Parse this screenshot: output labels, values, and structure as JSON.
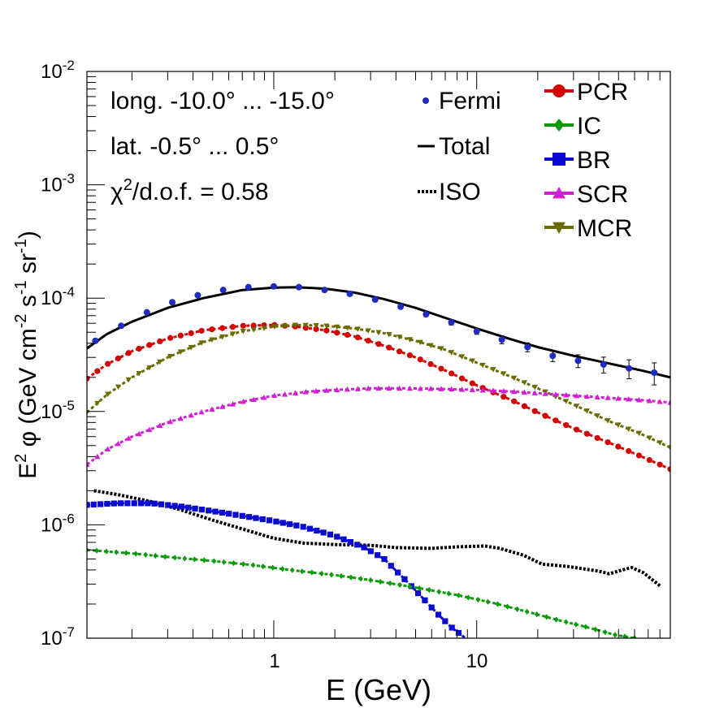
{
  "chart_data": {
    "type": "line",
    "xscale": "log",
    "yscale": "log",
    "xlim": [
      0.12,
      90
    ],
    "ylim": [
      1e-07,
      0.01
    ],
    "xlabel": "E (GeV)",
    "ylabel": {
      "base": "E",
      "sup1": "2",
      "mid": " φ (GeV cm",
      "sup2": "-2",
      "mid2": " s",
      "sup3": "-1",
      "mid3": " sr",
      "sup4": "-1",
      "end": ")"
    },
    "x_tick_labels": [
      {
        "value": 1,
        "label": "1"
      },
      {
        "value": 10,
        "label": "10"
      }
    ],
    "y_tick_labels": [
      {
        "value": 1e-07,
        "base": "10",
        "exp": "-7"
      },
      {
        "value": 1e-06,
        "base": "10",
        "exp": "-6"
      },
      {
        "value": 1e-05,
        "base": "10",
        "exp": "-5"
      },
      {
        "value": 0.0001,
        "base": "10",
        "exp": "-4"
      },
      {
        "value": 0.001,
        "base": "10",
        "exp": "-3"
      },
      {
        "value": 0.01,
        "base": "10",
        "exp": "-2"
      }
    ],
    "annotations": {
      "longitude": "long. -10.0° ... -15.0°",
      "latitude": "lat. -0.5° ... 0.5°",
      "chi2_prefix": "χ",
      "chi2_sup": "2",
      "chi2_suffix": "/d.o.f. = 0.58"
    },
    "legend_left": [
      {
        "name": "Fermi",
        "style": "dot",
        "color": "#1f2bbf"
      },
      {
        "name": "Total",
        "style": "solid",
        "color": "#000000"
      },
      {
        "name": "ISO",
        "style": "dotted",
        "color": "#000000"
      }
    ],
    "legend_right": [
      {
        "name": "PCR",
        "marker": "circle",
        "color": "#d40000"
      },
      {
        "name": "IC",
        "marker": "diamond",
        "color": "#0a9a0a"
      },
      {
        "name": "BR",
        "marker": "square",
        "color": "#0a0ad0"
      },
      {
        "name": "SCR",
        "marker": "triangle-up",
        "color": "#d020d0"
      },
      {
        "name": "MCR",
        "marker": "triangle-down",
        "color": "#6b6b00"
      }
    ],
    "fermi": {
      "x": [
        0.132,
        0.177,
        0.237,
        0.316,
        0.422,
        0.563,
        0.75,
        1.0,
        1.33,
        1.78,
        2.37,
        3.16,
        4.22,
        5.63,
        7.5,
        10.0,
        13.3,
        17.8,
        23.7,
        31.6,
        42.2,
        56.3,
        75.0
      ],
      "y": [
        4.2e-05,
        5.7e-05,
        7.5e-05,
        9.2e-05,
        0.000106,
        0.000118,
        0.000125,
        0.000127,
        0.000125,
        0.000118,
        0.000109,
        9.7e-05,
        8.4e-05,
        7.2e-05,
        6.1e-05,
        5.1e-05,
        4.3e-05,
        3.7e-05,
        3.1e-05,
        2.8e-05,
        2.6e-05,
        2.4e-05,
        2.2e-05
      ],
      "err_frac": [
        0.04,
        0.03,
        0.03,
        0.03,
        0.03,
        0.03,
        0.03,
        0.03,
        0.03,
        0.03,
        0.03,
        0.03,
        0.03,
        0.04,
        0.05,
        0.06,
        0.08,
        0.09,
        0.11,
        0.13,
        0.16,
        0.19,
        0.22
      ]
    },
    "series": [
      {
        "name": "Total",
        "color": "#000000",
        "style": "solid",
        "width": 3,
        "x": [
          0.12,
          0.15,
          0.2,
          0.3,
          0.45,
          0.7,
          1.0,
          1.3,
          1.8,
          2.5,
          3.5,
          5.0,
          7.0,
          10,
          15,
          20,
          30,
          45,
          65,
          90
        ],
        "y": [
          3.6e-05,
          4.8e-05,
          6.2e-05,
          8.2e-05,
          0.0001,
          0.000118,
          0.000124,
          0.000125,
          0.000121,
          0.000112,
          9.8e-05,
          8.2e-05,
          6.7e-05,
          5.4e-05,
          4.3e-05,
          3.7e-05,
          3.1e-05,
          2.65e-05,
          2.3e-05,
          2e-05
        ]
      },
      {
        "name": "PCR",
        "color": "#d40000",
        "style": "marker",
        "marker": "circle",
        "x": [
          0.12,
          0.15,
          0.2,
          0.3,
          0.45,
          0.7,
          1.0,
          1.3,
          1.8,
          2.5,
          3.5,
          5.0,
          7.0,
          10,
          15,
          20,
          30,
          45,
          65,
          90
        ],
        "y": [
          1.95e-05,
          2.6e-05,
          3.4e-05,
          4.4e-05,
          5.2e-05,
          5.7e-05,
          5.8e-05,
          5.6e-05,
          5.2e-05,
          4.6e-05,
          3.8e-05,
          3e-05,
          2.3e-05,
          1.7e-05,
          1.25e-05,
          9.8e-06,
          7.1e-06,
          5.3e-06,
          4e-06,
          3.1e-06
        ]
      },
      {
        "name": "MCR",
        "color": "#6b6b00",
        "style": "marker",
        "marker": "triangle-down",
        "x": [
          0.12,
          0.15,
          0.2,
          0.3,
          0.45,
          0.7,
          1.0,
          1.3,
          1.8,
          2.5,
          3.5,
          5.0,
          7.0,
          10,
          15,
          20,
          30,
          45,
          65,
          90
        ],
        "y": [
          9.8e-06,
          1.4e-05,
          2e-05,
          3e-05,
          4.1e-05,
          5.1e-05,
          5.6e-05,
          5.8e-05,
          5.7e-05,
          5.4e-05,
          4.9e-05,
          4.2e-05,
          3.5e-05,
          2.7e-05,
          2e-05,
          1.6e-05,
          1.15e-05,
          8.2e-06,
          6.3e-06,
          4.8e-06
        ]
      },
      {
        "name": "SCR",
        "color": "#d020d0",
        "style": "marker",
        "marker": "triangle-up",
        "x": [
          0.12,
          0.15,
          0.2,
          0.3,
          0.45,
          0.7,
          1.0,
          1.5,
          2.0,
          3.0,
          4.5,
          7.0,
          10,
          15,
          20,
          30,
          45,
          65,
          90
        ],
        "y": [
          3.4e-06,
          4.6e-06,
          6e-06,
          8e-06,
          1e-05,
          1.22e-05,
          1.38e-05,
          1.5e-05,
          1.55e-05,
          1.6e-05,
          1.6e-05,
          1.58e-05,
          1.55e-05,
          1.5e-05,
          1.45e-05,
          1.38e-05,
          1.32e-05,
          1.26e-05,
          1.2e-05
        ]
      },
      {
        "name": "ISO",
        "color": "#000000",
        "style": "dotted",
        "width": 4,
        "x": [
          0.13,
          0.17,
          0.25,
          0.35,
          0.5,
          0.7,
          1.0,
          1.4,
          2.0,
          3.0,
          4.0,
          6.0,
          8.0,
          11.0,
          13.0,
          17.0,
          21.0,
          28.0,
          40.0,
          45.0,
          52.0,
          58.0,
          66.0,
          80.0
        ],
        "y": [
          2e-06,
          1.85e-06,
          1.6e-06,
          1.35e-06,
          1.1e-06,
          9.2e-07,
          7.6e-07,
          6.9e-07,
          6.7e-07,
          6.6e-07,
          6.3e-07,
          6.2e-07,
          6.4e-07,
          6.5e-07,
          6.2e-07,
          5.4e-07,
          4.5e-07,
          4.3e-07,
          3.9e-07,
          3.7e-07,
          4e-07,
          4.2e-07,
          3.8e-07,
          2.9e-07
        ]
      },
      {
        "name": "BR",
        "color": "#0a0ad0",
        "style": "marker",
        "marker": "square",
        "x": [
          0.12,
          0.17,
          0.25,
          0.35,
          0.5,
          0.7,
          1.0,
          1.4,
          2.0,
          2.8,
          3.5,
          4.5,
          5.5,
          6.5,
          7.5,
          8.8
        ],
        "y": [
          1.5e-06,
          1.55e-06,
          1.55e-06,
          1.45e-06,
          1.32e-06,
          1.2e-06,
          1.08e-06,
          9.6e-07,
          8e-07,
          6.3e-07,
          5e-07,
          3.2e-07,
          2.2e-07,
          1.6e-07,
          1.25e-07,
          1e-07
        ]
      },
      {
        "name": "IC",
        "color": "#0a9a0a",
        "style": "marker",
        "marker": "diamond",
        "x": [
          0.12,
          0.2,
          0.3,
          0.5,
          0.8,
          1.2,
          2.0,
          3.0,
          5.0,
          8.0,
          12,
          18,
          25,
          35,
          48,
          60
        ],
        "y": [
          6e-07,
          5.6e-07,
          5.2e-07,
          4.8e-07,
          4.4e-07,
          4e-07,
          3.6e-07,
          3.25e-07,
          2.8e-07,
          2.4e-07,
          2.05e-07,
          1.7e-07,
          1.45e-07,
          1.25e-07,
          1.07e-07,
          1e-07
        ]
      }
    ]
  }
}
